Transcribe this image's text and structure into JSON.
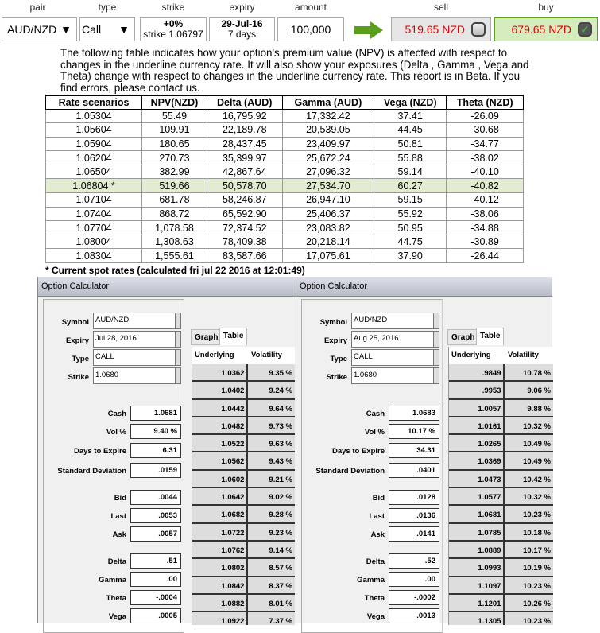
{
  "header": {
    "pair": "pair",
    "type": "type",
    "strike": "strike",
    "expiry": "expiry",
    "amount": "amount",
    "sell": "sell",
    "buy": "buy"
  },
  "controls": {
    "pair_value": "AUD/NZD",
    "type_value": "Call",
    "strike_pct": "+0%",
    "strike_value": "strike 1.06797",
    "expiry_date": "29-Jul-16",
    "expiry_days": "7 days",
    "amount": "100,000",
    "sell_price": "519.65 NZD",
    "buy_price": "679.65 NZD",
    "buy_checked": true,
    "sell_checked": false,
    "arrow_color": "#5a9e1e",
    "price_color": "#e00000",
    "buy_bg": "#d5ecbf"
  },
  "description": "The following table indicates how your option's premium value (NPV) is affected with respect to changes in the underline currency rate. It will also show your exposures (Delta , Gamma , Vega and Theta) change with respect to changes in the underline currency rate. This report is in Beta. If you find errors, please contact us.",
  "scenarios": {
    "columns": [
      "Rate scenarios",
      "NPV(NZD)",
      "Delta (AUD)",
      "Gamma (AUD)",
      "Vega (NZD)",
      "Theta (NZD)"
    ],
    "current_index": 5,
    "rows": [
      [
        "1.05304",
        "55.49",
        "16,795.92",
        "17,332.42",
        "37.41",
        "-26.09"
      ],
      [
        "1.05604",
        "109.91",
        "22,189.78",
        "20,539.05",
        "44.45",
        "-30.68"
      ],
      [
        "1.05904",
        "180.65",
        "28,437.45",
        "23,409.97",
        "50.81",
        "-34.77"
      ],
      [
        "1.06204",
        "270.73",
        "35,399.97",
        "25,672.24",
        "55.88",
        "-38.02"
      ],
      [
        "1.06504",
        "382.99",
        "42,867.64",
        "27,096.32",
        "59.14",
        "-40.10"
      ],
      [
        "1.06804 *",
        "519.66",
        "50,578.70",
        "27,534.70",
        "60.27",
        "-40.82"
      ],
      [
        "1.07104",
        "681.78",
        "58,246.87",
        "26,947.10",
        "59.15",
        "-40.12"
      ],
      [
        "1.07404",
        "868.72",
        "65,592.90",
        "25,406.37",
        "55.92",
        "-38.06"
      ],
      [
        "1.07704",
        "1,078.58",
        "72,374.52",
        "23,083.82",
        "50.95",
        "-34.88"
      ],
      [
        "1.08004",
        "1,308.63",
        "78,409.38",
        "20,218.14",
        "44.75",
        "-30.89"
      ],
      [
        "1.08304",
        "1,555.61",
        "83,587.66",
        "17,075.61",
        "37.90",
        "-26.44"
      ]
    ]
  },
  "footnote": "* Current spot rates (calculated fri jul 22 2016 at 12:01:49)",
  "calculators": [
    {
      "title": "Option Calculator",
      "labels": {
        "symbol": "Symbol",
        "expiry": "Expiry",
        "type": "Type",
        "strike": "Strike",
        "cash": "Cash",
        "vol": "Vol %",
        "days": "Days to Expire",
        "sd": "Standard Deviation",
        "bid": "Bid",
        "last": "Last",
        "ask": "Ask",
        "delta": "Delta",
        "gamma": "Gamma",
        "theta": "Theta",
        "vega": "Vega"
      },
      "symbol": "AUD/NZD",
      "expiry": "Jul 28, 2016",
      "type": "CALL",
      "strike": "1.0680",
      "cash": "1.0681",
      "vol": "9.40 %",
      "days": "6.31",
      "sd": ".0159",
      "bid": ".0044",
      "last": ".0053",
      "ask": ".0057",
      "delta": ".51",
      "gamma": ".00",
      "theta": "-.0004",
      "vega": ".0005",
      "tabs": [
        "Graph",
        "Table"
      ],
      "active_tab": "Table",
      "grid_headers": [
        "Underlying",
        "Volatility"
      ],
      "grid": [
        [
          "1.0362",
          "9.35 %"
        ],
        [
          "1.0402",
          "9.24 %"
        ],
        [
          "1.0442",
          "9.64 %"
        ],
        [
          "1.0482",
          "9.73 %"
        ],
        [
          "1.0522",
          "9.63 %"
        ],
        [
          "1.0562",
          "9.43 %"
        ],
        [
          "1.0602",
          "9.21 %"
        ],
        [
          "1.0642",
          "9.02 %"
        ],
        [
          "1.0682",
          "9.28 %"
        ],
        [
          "1.0722",
          "9.23 %"
        ],
        [
          "1.0762",
          "9.14 %"
        ],
        [
          "1.0802",
          "8.57 %"
        ],
        [
          "1.0842",
          "8.37 %"
        ],
        [
          "1.0882",
          "8.01 %"
        ],
        [
          "1.0922",
          "7.37 %"
        ]
      ]
    },
    {
      "title": "Option Calculator",
      "labels": {
        "symbol": "Symbol",
        "expiry": "Expiry",
        "type": "Type",
        "strike": "Strike",
        "cash": "Cash",
        "vol": "Vol %",
        "days": "Days to Expire",
        "sd": "Standard Deviation",
        "bid": "Bid",
        "last": "Last",
        "ask": "Ask",
        "delta": "Delta",
        "gamma": "Gamma",
        "theta": "Theta",
        "vega": "Vega"
      },
      "symbol": "AUD/NZD",
      "expiry": "Aug 25, 2016",
      "type": "CALL",
      "strike": "1.0680",
      "cash": "1.0683",
      "vol": "10.17 %",
      "days": "34.31",
      "sd": ".0401",
      "bid": ".0128",
      "last": ".0136",
      "ask": ".0141",
      "delta": ".52",
      "gamma": ".00",
      "theta": "-.0002",
      "vega": ".0013",
      "tabs": [
        "Graph",
        "Table"
      ],
      "active_tab": "Table",
      "grid_headers": [
        "Underlying",
        "Volatility"
      ],
      "grid": [
        [
          ".9849",
          "10.78 %"
        ],
        [
          ".9953",
          "9.06 %"
        ],
        [
          "1.0057",
          "9.88 %"
        ],
        [
          "1.0161",
          "10.32 %"
        ],
        [
          "1.0265",
          "10.49 %"
        ],
        [
          "1.0369",
          "10.49 %"
        ],
        [
          "1.0473",
          "10.42 %"
        ],
        [
          "1.0577",
          "10.32 %"
        ],
        [
          "1.0681",
          "10.23 %"
        ],
        [
          "1.0785",
          "10.18 %"
        ],
        [
          "1.0889",
          "10.17 %"
        ],
        [
          "1.0993",
          "10.19 %"
        ],
        [
          "1.1097",
          "10.23 %"
        ],
        [
          "1.1201",
          "10.26 %"
        ],
        [
          "1.1305",
          "10.23 %"
        ]
      ]
    }
  ]
}
